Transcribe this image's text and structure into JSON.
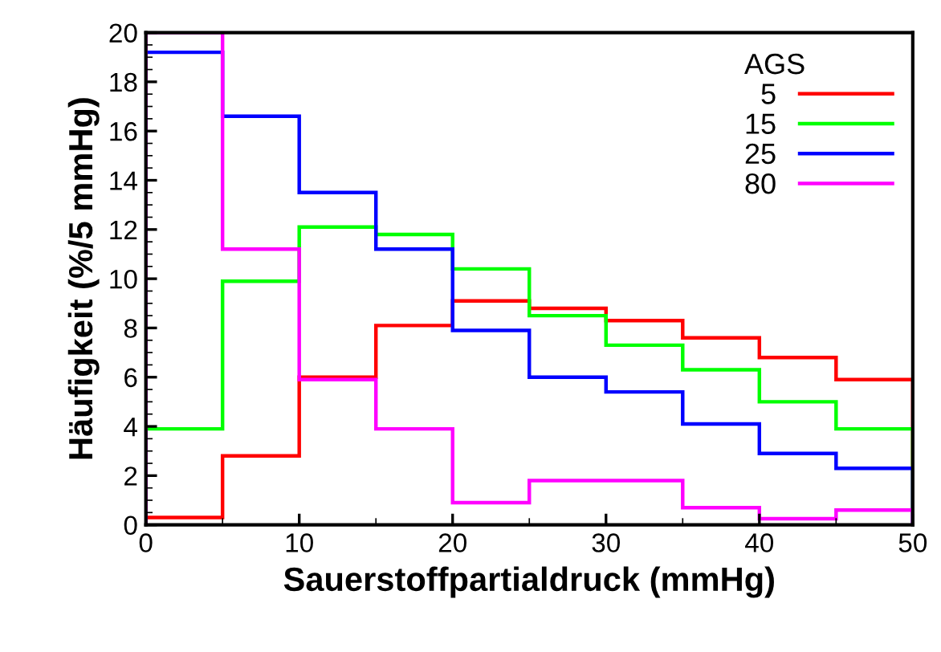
{
  "chart_data": {
    "type": "histogram",
    "xlabel": "Sauerstoffpartialdruck (mmHg)",
    "ylabel": "Häufigkeit (%/5 mmHg)",
    "legend_title": "AGS",
    "legend": "top right",
    "grid": false,
    "bins": [
      0,
      5,
      10,
      15,
      20,
      25,
      30,
      35,
      40,
      45,
      50
    ],
    "series": [
      {
        "name": "5",
        "color": "#ff0000",
        "values": [
          0.3,
          2.8,
          6.0,
          8.1,
          9.1,
          8.8,
          8.3,
          7.6,
          6.8,
          5.9
        ]
      },
      {
        "name": "15",
        "color": "#00ff00",
        "values": [
          3.9,
          9.9,
          12.1,
          11.8,
          10.4,
          8.5,
          7.3,
          6.3,
          5.0,
          3.9
        ]
      },
      {
        "name": "25",
        "color": "#0000ff",
        "values": [
          19.2,
          16.6,
          13.5,
          11.2,
          7.9,
          6.0,
          5.4,
          4.1,
          2.9,
          2.3
        ]
      },
      {
        "name": "80",
        "color": "#ff00ff",
        "values": [
          20,
          11.2,
          5.9,
          3.9,
          0.9,
          1.8,
          1.8,
          0.7,
          0.25,
          0.6
        ]
      }
    ],
    "xlim": [
      0,
      50
    ],
    "xticks": [
      0,
      10,
      20,
      30,
      40,
      50
    ],
    "ylim": [
      0,
      20
    ],
    "yticks": [
      0,
      2,
      4,
      6,
      8,
      10,
      12,
      14,
      16,
      18,
      20
    ]
  }
}
